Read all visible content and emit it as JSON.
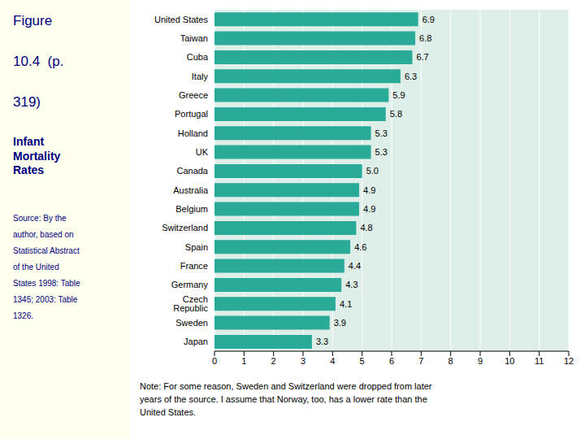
{
  "chart_data": {
    "type": "bar",
    "orientation": "horizontal",
    "title": "Figure\n10.4  (p.\n319)",
    "subtitle": "Infant\nMortality\nRates",
    "source": [
      "Source: By the",
      "author, based on",
      "Statistical Abstract",
      "of the United",
      "States 1998: Table",
      "1345; 2003: Table",
      "1326."
    ],
    "note": "Note: For some reason, Sweden and Switzerland were dropped from later\nyears of the source. I assume that Norway, too, has a lower rate than the\nUnited States.",
    "categories": [
      "United States",
      "Taiwan",
      "Cuba",
      "Italy",
      "Greece",
      "Portugal",
      "Holland",
      "UK",
      "Canada",
      "Australia",
      "Belgium",
      "Switzerland",
      "Spain",
      "France",
      "Germany",
      "Czech Republic",
      "Sweden",
      "Japan"
    ],
    "values": [
      6.9,
      6.8,
      6.7,
      6.3,
      5.9,
      5.8,
      5.3,
      5.3,
      5.0,
      4.9,
      4.9,
      4.8,
      4.6,
      4.4,
      4.3,
      4.1,
      3.9,
      3.3
    ],
    "value_labels": [
      "6.9",
      "6.8",
      "6.7",
      "6.3",
      "5.9",
      "5.8",
      "5.3",
      "5.3",
      "5.0",
      "4.9",
      "4.9",
      "4.8",
      "4.6",
      "4.4",
      "4.3",
      "4.1",
      "3.9",
      "3.3"
    ],
    "color": "#2aaa98",
    "xlim": [
      0,
      12
    ],
    "xticks": [
      0,
      1,
      2,
      3,
      4,
      5,
      6,
      7,
      8,
      9,
      10,
      11,
      12
    ],
    "grid": true,
    "data_labels": true
  }
}
